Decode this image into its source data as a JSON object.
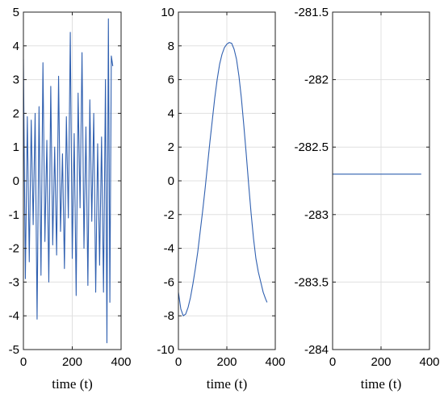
{
  "chart_data": [
    {
      "type": "line",
      "xlabel": "time (t)",
      "ylabel": "",
      "xlim": [
        0,
        400
      ],
      "ylim": [
        -5,
        5
      ],
      "xticks": [
        0,
        200,
        400
      ],
      "yticks": [
        -5,
        -4,
        -3,
        -2,
        -1,
        0,
        1,
        2,
        3,
        4,
        5
      ],
      "grid": true,
      "series": [
        {
          "color": "#3060B0",
          "x": [
            0,
            8,
            16,
            24,
            32,
            40,
            48,
            56,
            64,
            72,
            80,
            88,
            96,
            104,
            112,
            120,
            128,
            136,
            144,
            152,
            160,
            168,
            176,
            184,
            192,
            200,
            208,
            216,
            224,
            232,
            240,
            248,
            256,
            264,
            272,
            280,
            288,
            296,
            304,
            312,
            320,
            328,
            336,
            342,
            348,
            354,
            360,
            366
          ],
          "y": [
            3.6,
            -2.9,
            1.9,
            -2.4,
            1.8,
            -1.3,
            2.0,
            -4.1,
            2.2,
            -2.8,
            3.5,
            -1.8,
            1.2,
            -3.0,
            2.8,
            -1.9,
            1.0,
            -2.2,
            3.1,
            -1.5,
            0.8,
            -2.6,
            1.9,
            -1.1,
            4.4,
            -2.3,
            1.4,
            -3.4,
            2.6,
            -0.8,
            3.8,
            -2.0,
            1.6,
            -3.1,
            2.4,
            -1.2,
            2.0,
            -3.3,
            1.1,
            -2.5,
            1.3,
            -3.3,
            3.0,
            -4.8,
            4.8,
            -3.6,
            3.7,
            3.4
          ]
        }
      ]
    },
    {
      "type": "line",
      "xlabel": "time (t)",
      "ylabel": "",
      "xlim": [
        0,
        400
      ],
      "ylim": [
        -10,
        10
      ],
      "xticks": [
        0,
        200,
        400
      ],
      "yticks": [
        -10,
        -8,
        -6,
        -4,
        -2,
        0,
        2,
        4,
        6,
        8,
        10
      ],
      "grid": true,
      "series": [
        {
          "color": "#3060B0",
          "x": [
            0,
            10,
            20,
            30,
            40,
            50,
            60,
            70,
            80,
            90,
            100,
            110,
            120,
            130,
            140,
            150,
            160,
            170,
            180,
            190,
            200,
            210,
            220,
            230,
            240,
            250,
            260,
            270,
            280,
            290,
            300,
            310,
            320,
            330,
            340,
            350,
            360,
            366
          ],
          "y": [
            -6.6,
            -7.6,
            -8.0,
            -7.9,
            -7.5,
            -6.9,
            -6.1,
            -5.2,
            -4.2,
            -3.0,
            -1.8,
            -0.5,
            0.9,
            2.3,
            3.6,
            4.9,
            6.0,
            6.9,
            7.5,
            7.9,
            8.1,
            8.2,
            8.15,
            7.8,
            7.2,
            6.2,
            4.9,
            3.3,
            1.6,
            -0.2,
            -1.9,
            -3.4,
            -4.6,
            -5.4,
            -6.0,
            -6.6,
            -7.0,
            -7.2
          ]
        }
      ]
    },
    {
      "type": "line",
      "xlabel": "time (t)",
      "ylabel": "",
      "xlim": [
        0,
        400
      ],
      "ylim": [
        -284,
        -281.5
      ],
      "xticks": [
        0,
        200,
        400
      ],
      "yticks": [
        -284,
        -283.5,
        -283,
        -282.5,
        -282,
        -281.5
      ],
      "grid": true,
      "series": [
        {
          "color": "#3060B0",
          "x": [
            0,
            366
          ],
          "y": [
            -282.7,
            -282.7
          ]
        }
      ]
    }
  ]
}
